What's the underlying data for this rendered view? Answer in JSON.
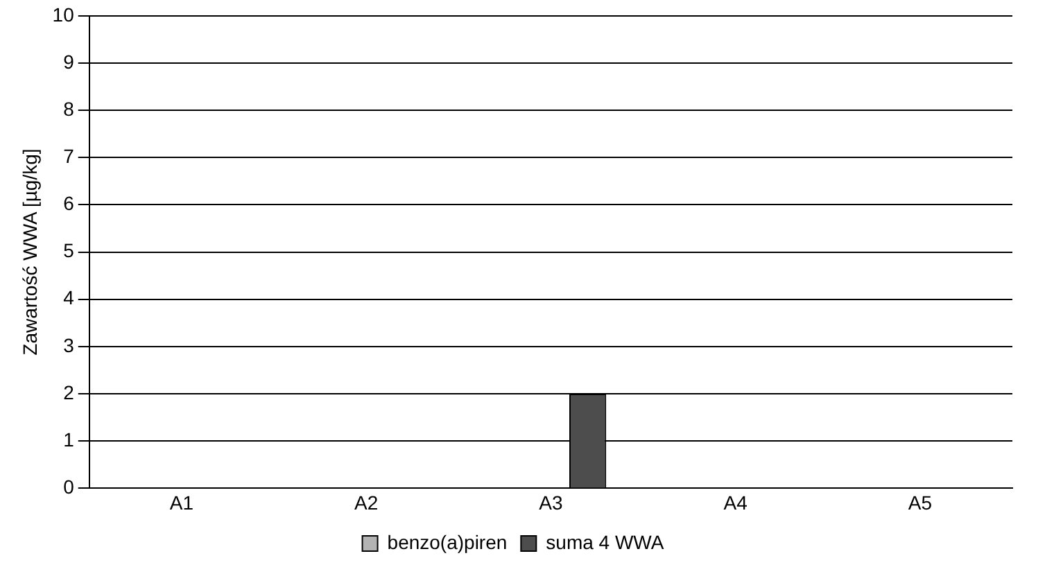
{
  "chart_data": {
    "type": "bar",
    "ylabel": "Zawartość WWA [µg/kg]",
    "categories": [
      "A1",
      "A2",
      "A3",
      "A4",
      "A5"
    ],
    "series": [
      {
        "name": "benzo(a)piren",
        "color": "#b3b3b3",
        "values": [
          0,
          0,
          0,
          0,
          0
        ]
      },
      {
        "name": "suma 4 WWA",
        "color": "#4d4d4d",
        "values": [
          0,
          0,
          2,
          0,
          0
        ]
      }
    ],
    "ylim": [
      0,
      10
    ],
    "yticks": [
      0,
      1,
      2,
      3,
      4,
      5,
      6,
      7,
      8,
      9,
      10
    ],
    "grid": "y",
    "legend": "bottom"
  }
}
